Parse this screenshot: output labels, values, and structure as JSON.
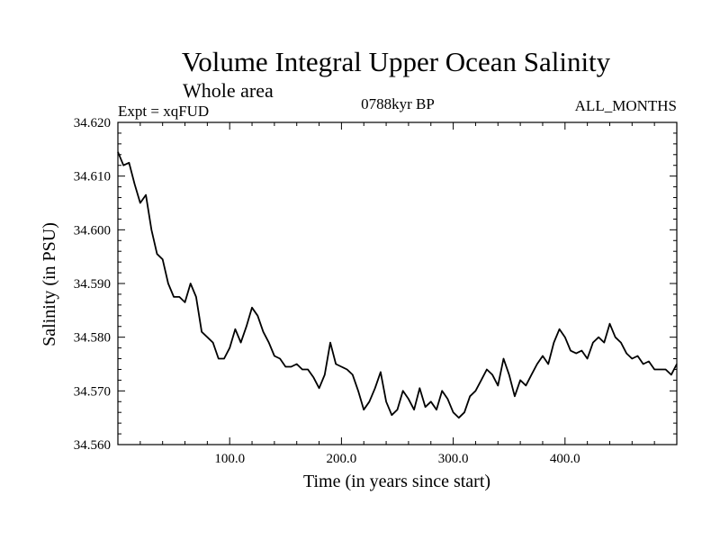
{
  "header": {
    "title": "Volume Integral Upper Ocean Salinity",
    "subtitle": "Whole area",
    "expt": "Expt = xqFUD",
    "period": "0788kyr BP",
    "months": "ALL_MONTHS"
  },
  "chart_data": {
    "type": "line",
    "title": "Volume Integral Upper Ocean Salinity",
    "xlabel": "Time (in years since start)",
    "ylabel": "Salinity (in PSU)",
    "xlim": [
      0,
      500
    ],
    "ylim": [
      34.56,
      34.62
    ],
    "x_ticks": [
      100,
      200,
      300,
      400
    ],
    "x_tick_labels": [
      "100.0",
      "200.0",
      "300.0",
      "400.0"
    ],
    "y_ticks": [
      34.56,
      34.57,
      34.58,
      34.59,
      34.6,
      34.61,
      34.62
    ],
    "y_tick_labels": [
      "34.560",
      "34.570",
      "34.580",
      "34.590",
      "34.600",
      "34.610",
      "34.620"
    ],
    "grid": false,
    "series": [
      {
        "name": "salinity",
        "x": [
          0,
          5,
          10,
          15,
          20,
          25,
          30,
          35,
          40,
          45,
          50,
          55,
          60,
          65,
          70,
          75,
          80,
          85,
          90,
          95,
          100,
          105,
          110,
          115,
          120,
          125,
          130,
          135,
          140,
          145,
          150,
          155,
          160,
          165,
          170,
          175,
          180,
          185,
          190,
          195,
          200,
          205,
          210,
          215,
          220,
          225,
          230,
          235,
          240,
          245,
          250,
          255,
          260,
          265,
          270,
          275,
          280,
          285,
          290,
          295,
          300,
          305,
          310,
          315,
          320,
          325,
          330,
          335,
          340,
          345,
          350,
          355,
          360,
          365,
          370,
          375,
          380,
          385,
          390,
          395,
          400,
          405,
          410,
          415,
          420,
          425,
          430,
          435,
          440,
          445,
          450,
          455,
          460,
          465,
          470,
          475,
          480,
          485,
          490,
          495,
          500
        ],
        "values": [
          34.6145,
          34.612,
          34.6125,
          34.6085,
          34.605,
          34.6065,
          34.6,
          34.5955,
          34.5945,
          34.59,
          34.5875,
          34.5875,
          34.5865,
          34.59,
          34.5875,
          34.581,
          34.58,
          34.579,
          34.576,
          34.576,
          34.578,
          34.5815,
          34.579,
          34.582,
          34.5855,
          34.584,
          34.581,
          34.579,
          34.5765,
          34.576,
          34.5745,
          34.5745,
          34.575,
          34.574,
          34.574,
          34.5725,
          34.5705,
          34.573,
          34.579,
          34.575,
          34.5745,
          34.574,
          34.573,
          34.57,
          34.5665,
          34.568,
          34.5705,
          34.5735,
          34.568,
          34.5655,
          34.5665,
          34.57,
          34.5685,
          34.5665,
          34.5705,
          34.567,
          34.568,
          34.5665,
          34.57,
          34.5685,
          34.566,
          34.565,
          34.566,
          34.569,
          34.57,
          34.572,
          34.574,
          34.573,
          34.571,
          34.576,
          34.573,
          34.569,
          34.572,
          34.571,
          34.573,
          34.575,
          34.5765,
          34.575,
          34.579,
          34.5815,
          34.58,
          34.5775,
          34.577,
          34.5775,
          34.576,
          34.579,
          34.58,
          34.579,
          34.5825,
          34.58,
          34.579,
          34.577,
          34.576,
          34.5765,
          34.575,
          34.5755,
          34.574,
          34.574,
          34.574,
          34.573,
          34.575
        ]
      }
    ]
  }
}
